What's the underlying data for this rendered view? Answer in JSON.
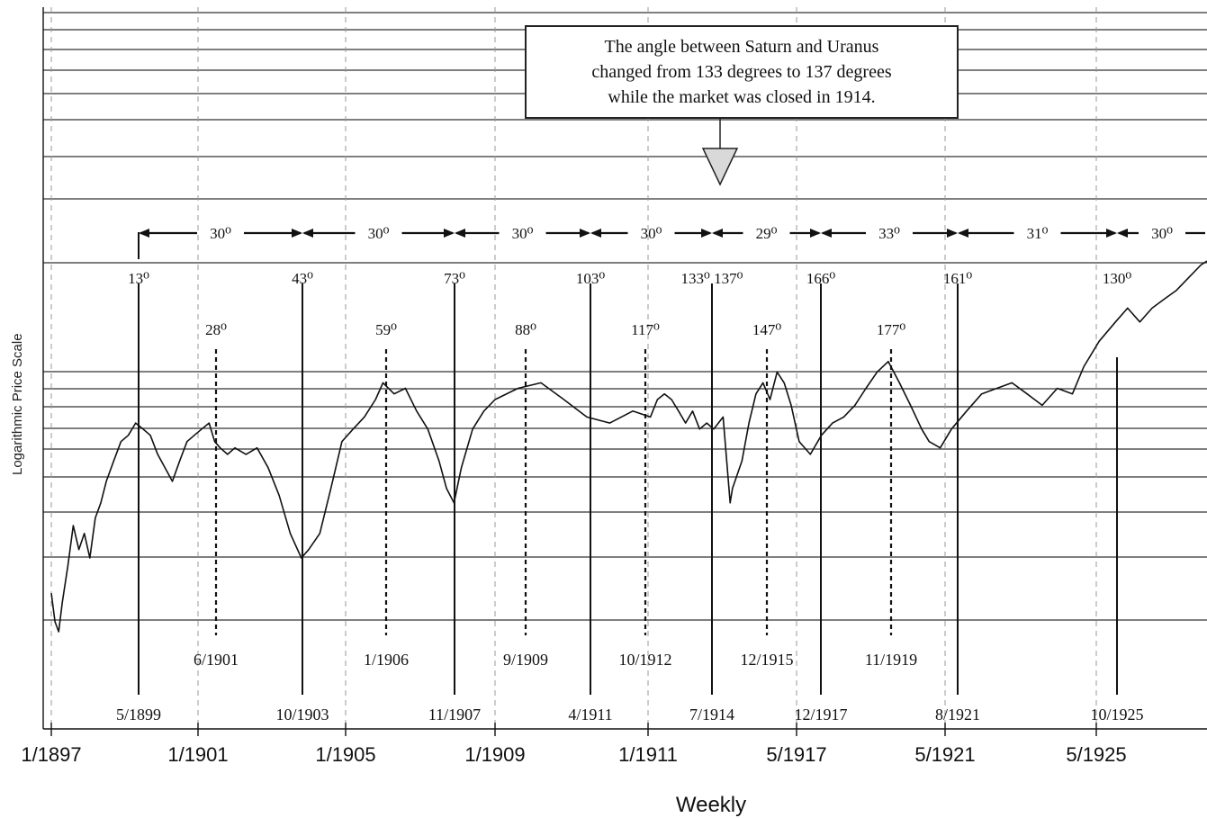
{
  "chart_data": {
    "type": "line",
    "title": "",
    "xlabel": "Weekly",
    "ylabel": "Logarithmic  Price  Scale",
    "x_ticks": [
      "1/1897",
      "1/1901",
      "1/1905",
      "1/1909",
      "1/1911",
      "5/1917",
      "5/1921",
      "5/1925"
    ],
    "y_scale": "log",
    "grid": {
      "horizontal": true,
      "vertical": "dashed"
    },
    "annotation": "The angle between Saturn and Uranus\nchanged from 133 degrees to 137 degrees\nwhile the market was closed in 1914.",
    "spans": [
      {
        "label": "30⁰"
      },
      {
        "label": "30⁰"
      },
      {
        "label": "30⁰"
      },
      {
        "label": "30⁰"
      },
      {
        "label": "29⁰"
      },
      {
        "label": "33⁰"
      },
      {
        "label": "31⁰"
      },
      {
        "label": "30⁰"
      }
    ],
    "major_aspects": [
      {
        "angle": "13⁰",
        "date": "5/1899"
      },
      {
        "angle": "43⁰",
        "date": "10/1903"
      },
      {
        "angle": "73⁰",
        "date": "11/1907"
      },
      {
        "angle": "103⁰",
        "date": "4/1911"
      },
      {
        "angle": "133⁰ 137⁰",
        "date": "7/1914"
      },
      {
        "angle": "166⁰",
        "date": "12/1917"
      },
      {
        "angle": "161⁰",
        "date": "8/1921"
      },
      {
        "angle": "130⁰",
        "date": "10/1925"
      }
    ],
    "minor_aspects": [
      {
        "angle": "28⁰",
        "date": "6/1901"
      },
      {
        "angle": "59⁰",
        "date": "1/1906"
      },
      {
        "angle": "88⁰",
        "date": "9/1909"
      },
      {
        "angle": "117⁰",
        "date": "10/1912"
      },
      {
        "angle": "147⁰",
        "date": "12/1915"
      },
      {
        "angle": "177⁰",
        "date": "11/1919"
      }
    ],
    "series": [
      {
        "values": [
          [
            1897.0,
            44
          ],
          [
            1897.1,
            41
          ],
          [
            1897.2,
            40
          ],
          [
            1897.3,
            43
          ],
          [
            1897.45,
            47
          ],
          [
            1897.6,
            52
          ],
          [
            1897.75,
            49
          ],
          [
            1897.9,
            51
          ],
          [
            1898.05,
            48
          ],
          [
            1898.2,
            53
          ],
          [
            1898.35,
            55
          ],
          [
            1898.5,
            58
          ],
          [
            1898.7,
            61
          ],
          [
            1898.9,
            64
          ],
          [
            1899.1,
            65
          ],
          [
            1899.3,
            67
          ],
          [
            1899.5,
            66
          ],
          [
            1899.7,
            65
          ],
          [
            1899.9,
            62
          ],
          [
            1900.1,
            60
          ],
          [
            1900.3,
            58
          ],
          [
            1900.5,
            61
          ],
          [
            1900.7,
            64
          ],
          [
            1900.9,
            65
          ],
          [
            1901.1,
            66
          ],
          [
            1901.3,
            67
          ],
          [
            1901.45,
            64
          ],
          [
            1901.6,
            63
          ],
          [
            1901.8,
            62
          ],
          [
            1902.0,
            63
          ],
          [
            1902.3,
            62
          ],
          [
            1902.6,
            63
          ],
          [
            1902.9,
            60
          ],
          [
            1903.2,
            56
          ],
          [
            1903.5,
            51
          ],
          [
            1903.8,
            48
          ],
          [
            1904.0,
            49
          ],
          [
            1904.3,
            51
          ],
          [
            1904.6,
            57
          ],
          [
            1904.9,
            64
          ],
          [
            1905.2,
            66
          ],
          [
            1905.5,
            68
          ],
          [
            1905.8,
            71
          ],
          [
            1906.0,
            74
          ],
          [
            1906.3,
            72
          ],
          [
            1906.6,
            73
          ],
          [
            1906.9,
            69
          ],
          [
            1907.2,
            66
          ],
          [
            1907.5,
            61
          ],
          [
            1907.7,
            57
          ],
          [
            1907.9,
            55
          ],
          [
            1908.1,
            60
          ],
          [
            1908.4,
            66
          ],
          [
            1908.7,
            69
          ],
          [
            1909.0,
            71
          ],
          [
            1909.3,
            73
          ],
          [
            1909.6,
            74
          ],
          [
            1909.9,
            71
          ],
          [
            1910.2,
            68
          ],
          [
            1910.5,
            67
          ],
          [
            1910.8,
            69
          ],
          [
            1911.1,
            68
          ],
          [
            1911.4,
            71
          ],
          [
            1911.7,
            72
          ],
          [
            1912.0,
            71
          ],
          [
            1912.3,
            69
          ],
          [
            1912.6,
            67
          ],
          [
            1912.9,
            69
          ],
          [
            1913.2,
            66
          ],
          [
            1913.5,
            67
          ],
          [
            1913.8,
            66
          ],
          [
            1914.2,
            68
          ],
          [
            1914.5,
            55
          ],
          [
            1914.6,
            57
          ],
          [
            1915.0,
            61
          ],
          [
            1915.3,
            67
          ],
          [
            1915.6,
            72
          ],
          [
            1915.9,
            74
          ],
          [
            1916.2,
            71
          ],
          [
            1916.5,
            76
          ],
          [
            1916.8,
            74
          ],
          [
            1917.1,
            70
          ],
          [
            1917.4,
            64
          ],
          [
            1917.7,
            62
          ],
          [
            1918.0,
            65
          ],
          [
            1918.3,
            67
          ],
          [
            1918.6,
            68
          ],
          [
            1918.9,
            70
          ],
          [
            1919.2,
            73
          ],
          [
            1919.5,
            76
          ],
          [
            1919.8,
            78
          ],
          [
            1920.1,
            74
          ],
          [
            1920.4,
            70
          ],
          [
            1920.7,
            66
          ],
          [
            1920.9,
            64
          ],
          [
            1921.2,
            63
          ],
          [
            1921.5,
            66
          ],
          [
            1921.9,
            69
          ],
          [
            1922.3,
            72
          ],
          [
            1922.7,
            73
          ],
          [
            1923.1,
            74
          ],
          [
            1923.5,
            72
          ],
          [
            1923.9,
            70
          ],
          [
            1924.3,
            73
          ],
          [
            1924.7,
            72
          ],
          [
            1925.0,
            77
          ],
          [
            1925.4,
            82
          ],
          [
            1925.8,
            86
          ],
          [
            1926.1,
            89
          ],
          [
            1926.4,
            86
          ],
          [
            1926.7,
            89
          ],
          [
            1927.0,
            91
          ],
          [
            1927.3,
            93
          ],
          [
            1927.6,
            96
          ],
          [
            1927.9,
            99
          ],
          [
            1928.05,
            100
          ]
        ]
      }
    ]
  }
}
